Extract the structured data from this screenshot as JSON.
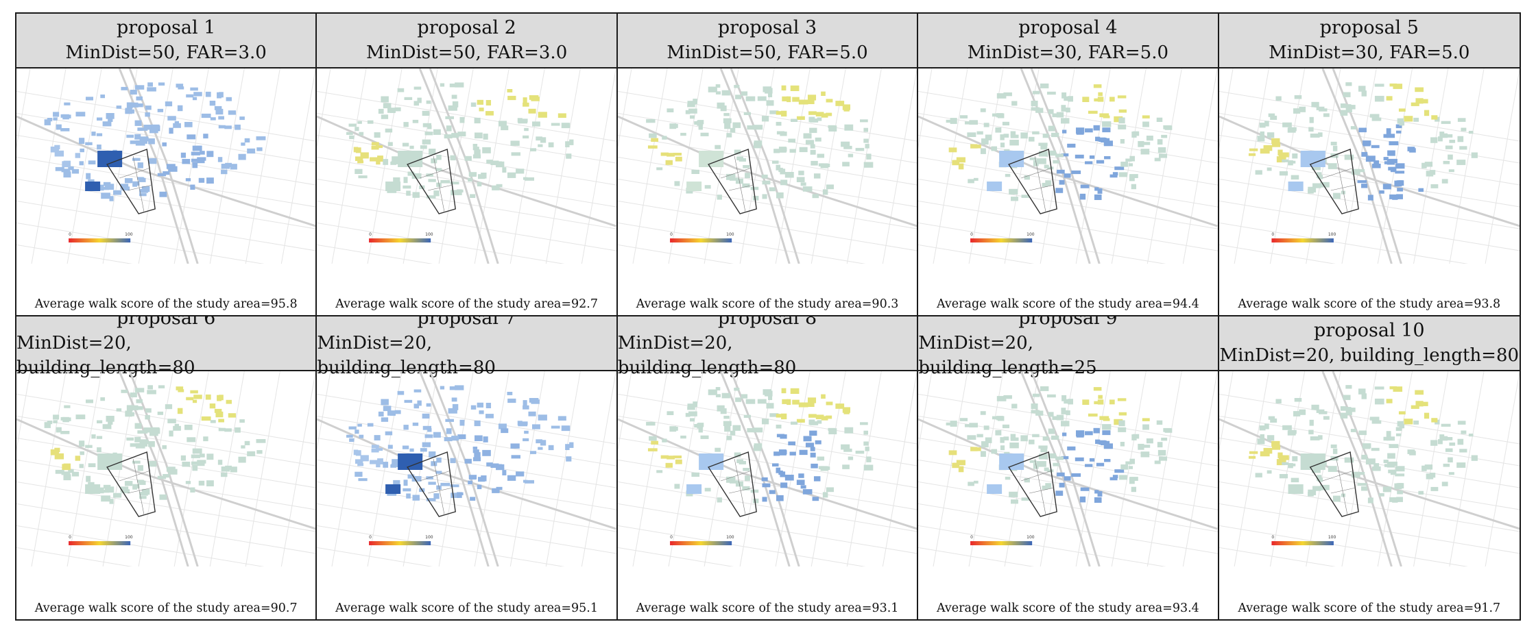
{
  "legend": {
    "min_label": "0",
    "max_label": "100"
  },
  "colors": {
    "low": "#e8262c",
    "mid": "#f5d631",
    "high": "#3b66b8",
    "neutral": "#c5dcd2"
  },
  "panels": [
    {
      "title": "proposal 1",
      "params": "MinDist=50, FAR=3.0",
      "caption": "Average walk score of the study area=95.8",
      "scheme": "blue_strong"
    },
    {
      "title": "proposal 2",
      "params": "MinDist=50, FAR=3.0",
      "caption": "Average walk score of the study area=92.7",
      "scheme": "green"
    },
    {
      "title": "proposal 3",
      "params": "MinDist=50, FAR=5.0",
      "caption": "Average walk score of the study area=90.3",
      "scheme": "green_empty"
    },
    {
      "title": "proposal 4",
      "params": "MinDist=30, FAR=5.0",
      "caption": "Average walk score of the study area=94.4",
      "scheme": "blue_light"
    },
    {
      "title": "proposal 5",
      "params": "MinDist=30, FAR=5.0",
      "caption": "Average walk score of the study area=93.8",
      "scheme": "blue_light"
    },
    {
      "title": "proposal 6",
      "params": "MinDist=20, building_length=80",
      "caption": "Average walk score of the study area=90.7",
      "scheme": "green"
    },
    {
      "title": "proposal 7",
      "params": "MinDist=20, building_length=80",
      "caption": "Average walk score of the study area=95.1",
      "scheme": "blue_strong"
    },
    {
      "title": "proposal 8",
      "params": "MinDist=20, building_length=80",
      "caption": "Average walk score of the study area=93.1",
      "scheme": "blue_light"
    },
    {
      "title": "proposal 9",
      "params": "MinDist=20, building_length=25",
      "caption": "Average walk score of the study area=93.4",
      "scheme": "blue_light"
    },
    {
      "title": "proposal 10",
      "params": "MinDist=20, building_length=80",
      "caption": "Average walk score of the study area=91.7",
      "scheme": "green"
    }
  ]
}
